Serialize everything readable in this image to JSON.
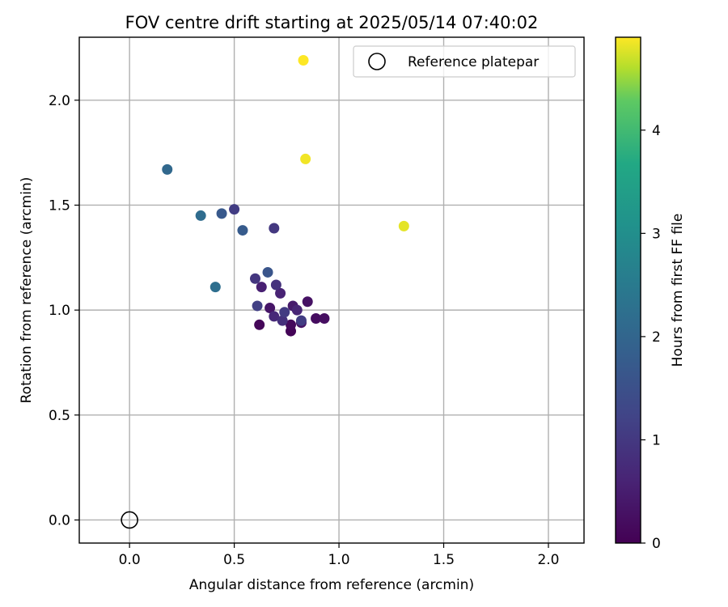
{
  "chart_data": {
    "type": "scatter",
    "title": "FOV centre drift starting at 2025/05/14 07:40:02",
    "xlabel": "Angular distance from reference (arcmin)",
    "ylabel": "Rotation from reference (arcmin)",
    "xlim": [
      -0.24,
      2.17
    ],
    "ylim": [
      -0.11,
      2.3
    ],
    "xticks": [
      0.0,
      0.5,
      1.0,
      1.5,
      2.0
    ],
    "xtick_labels": [
      "0.0",
      "0.5",
      "1.0",
      "1.5",
      "2.0"
    ],
    "yticks": [
      0.0,
      0.5,
      1.0,
      1.5,
      2.0
    ],
    "ytick_labels": [
      "0.0",
      "0.5",
      "1.0",
      "1.5",
      "2.0"
    ],
    "grid": true,
    "legend": {
      "placement": "top-right",
      "entries": [
        "Reference platepar"
      ]
    },
    "reference_point": {
      "x": 0.0,
      "y": 0.0,
      "label": "Reference platepar"
    },
    "colorbar": {
      "label": "Hours from first FF file",
      "range": [
        0,
        4.9
      ],
      "ticks": [
        0,
        1,
        2,
        3,
        4
      ],
      "tick_labels": [
        "0",
        "1",
        "2",
        "3",
        "4"
      ],
      "colormap": "viridis"
    },
    "points": [
      {
        "x": 0.62,
        "y": 0.93,
        "hours": 0.1
      },
      {
        "x": 0.77,
        "y": 0.9,
        "hours": 0.05
      },
      {
        "x": 0.77,
        "y": 0.93,
        "hours": 0.15
      },
      {
        "x": 0.82,
        "y": 0.94,
        "hours": 0.3
      },
      {
        "x": 0.89,
        "y": 0.96,
        "hours": 0.2
      },
      {
        "x": 0.93,
        "y": 0.96,
        "hours": 0.25
      },
      {
        "x": 0.85,
        "y": 1.04,
        "hours": 0.3
      },
      {
        "x": 0.67,
        "y": 1.01,
        "hours": 0.35
      },
      {
        "x": 0.78,
        "y": 1.02,
        "hours": 0.45
      },
      {
        "x": 0.63,
        "y": 1.11,
        "hours": 0.55
      },
      {
        "x": 0.72,
        "y": 1.08,
        "hours": 0.6
      },
      {
        "x": 0.8,
        "y": 1.0,
        "hours": 0.65
      },
      {
        "x": 0.69,
        "y": 0.97,
        "hours": 0.7
      },
      {
        "x": 0.73,
        "y": 0.95,
        "hours": 0.85
      },
      {
        "x": 0.7,
        "y": 1.12,
        "hours": 0.9
      },
      {
        "x": 0.6,
        "y": 1.15,
        "hours": 0.95
      },
      {
        "x": 0.74,
        "y": 0.99,
        "hours": 1.05
      },
      {
        "x": 0.82,
        "y": 0.95,
        "hours": 1.1
      },
      {
        "x": 0.61,
        "y": 1.02,
        "hours": 1.15
      },
      {
        "x": 0.69,
        "y": 1.39,
        "hours": 1.0
      },
      {
        "x": 0.5,
        "y": 1.48,
        "hours": 1.1
      },
      {
        "x": 0.66,
        "y": 1.18,
        "hours": 1.6
      },
      {
        "x": 0.44,
        "y": 1.46,
        "hours": 1.7
      },
      {
        "x": 0.54,
        "y": 1.38,
        "hours": 1.75
      },
      {
        "x": 0.34,
        "y": 1.45,
        "hours": 2.15
      },
      {
        "x": 0.18,
        "y": 1.67,
        "hours": 2.05
      },
      {
        "x": 0.41,
        "y": 1.11,
        "hours": 2.2
      },
      {
        "x": 0.83,
        "y": 2.19,
        "hours": 4.9
      },
      {
        "x": 0.84,
        "y": 1.72,
        "hours": 4.85
      },
      {
        "x": 1.31,
        "y": 1.4,
        "hours": 4.8
      }
    ]
  }
}
